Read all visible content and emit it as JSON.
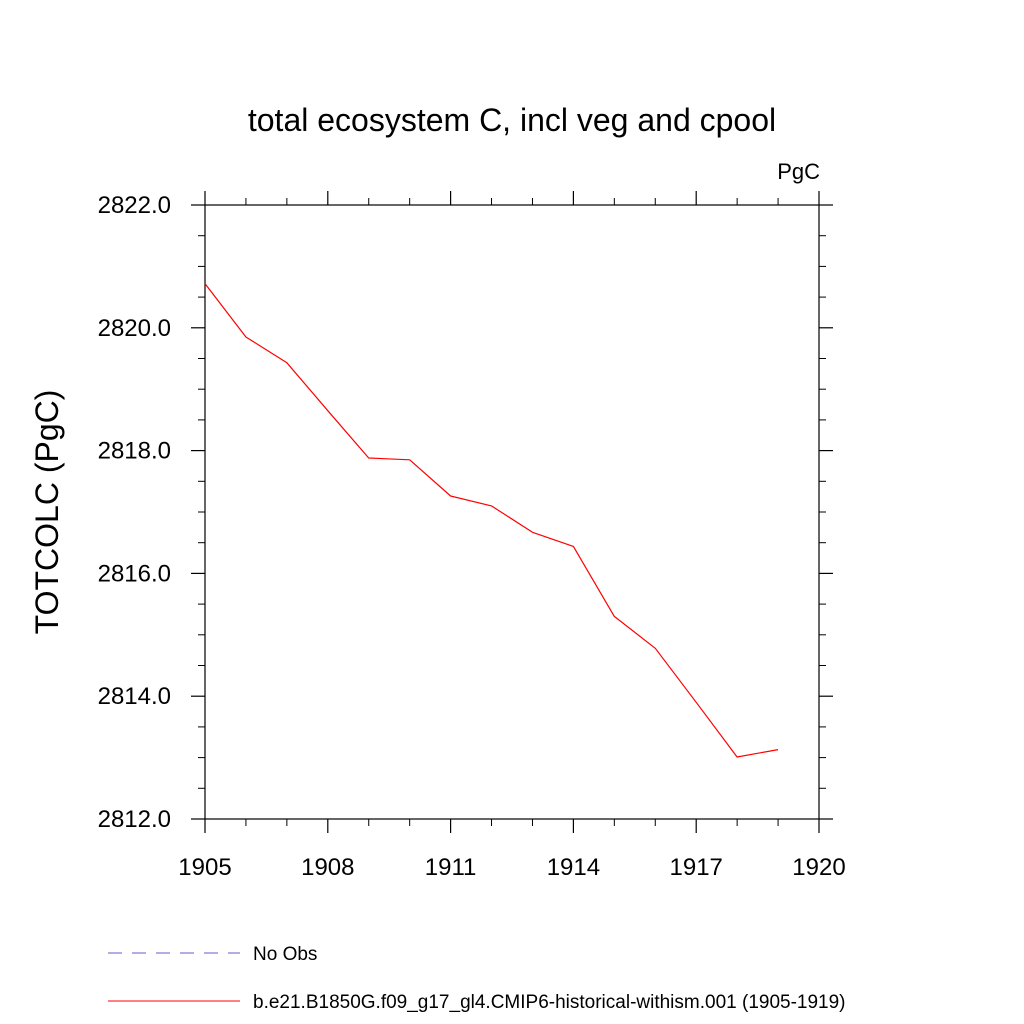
{
  "chart_data": {
    "type": "line",
    "title": "total ecosystem C, incl veg and cpool",
    "units_label": "PgC",
    "ylabel": "TOTCOLC  (PgC)",
    "xlabel": "",
    "xlim": [
      1905,
      1920
    ],
    "ylim": [
      2812.0,
      2822.0
    ],
    "x_ticks": [
      1905,
      1908,
      1911,
      1914,
      1917,
      1920
    ],
    "x_tick_labels": [
      "1905",
      "1908",
      "1911",
      "1914",
      "1917",
      "1920"
    ],
    "y_ticks": [
      2812.0,
      2814.0,
      2816.0,
      2818.0,
      2820.0,
      2822.0
    ],
    "y_tick_labels": [
      "2812.0",
      "2814.0",
      "2816.0",
      "2818.0",
      "2820.0",
      "2822.0"
    ],
    "grid": false,
    "legend_position": "bottom-left",
    "series": [
      {
        "name": "b.e21.B1850G.f09_g17_gl4.CMIP6-historical-withism.001 (1905-1919)",
        "color": "#ff0000",
        "style": "solid",
        "x": [
          1905,
          1906,
          1907,
          1908,
          1909,
          1910,
          1911,
          1912,
          1913,
          1914,
          1915,
          1916,
          1917,
          1918,
          1919
        ],
        "y": [
          2820.72,
          2819.85,
          2819.43,
          2818.65,
          2817.88,
          2817.85,
          2817.26,
          2817.1,
          2816.67,
          2816.44,
          2815.3,
          2814.78,
          2813.9,
          2813.01,
          2813.13
        ]
      }
    ],
    "legend": [
      {
        "label": "No Obs",
        "color": "#6a5acd",
        "style": "dashed"
      },
      {
        "label": "b.e21.B1850G.f09_g17_gl4.CMIP6-historical-withism.001 (1905-1919)",
        "color": "#ff0000",
        "style": "solid"
      }
    ]
  }
}
